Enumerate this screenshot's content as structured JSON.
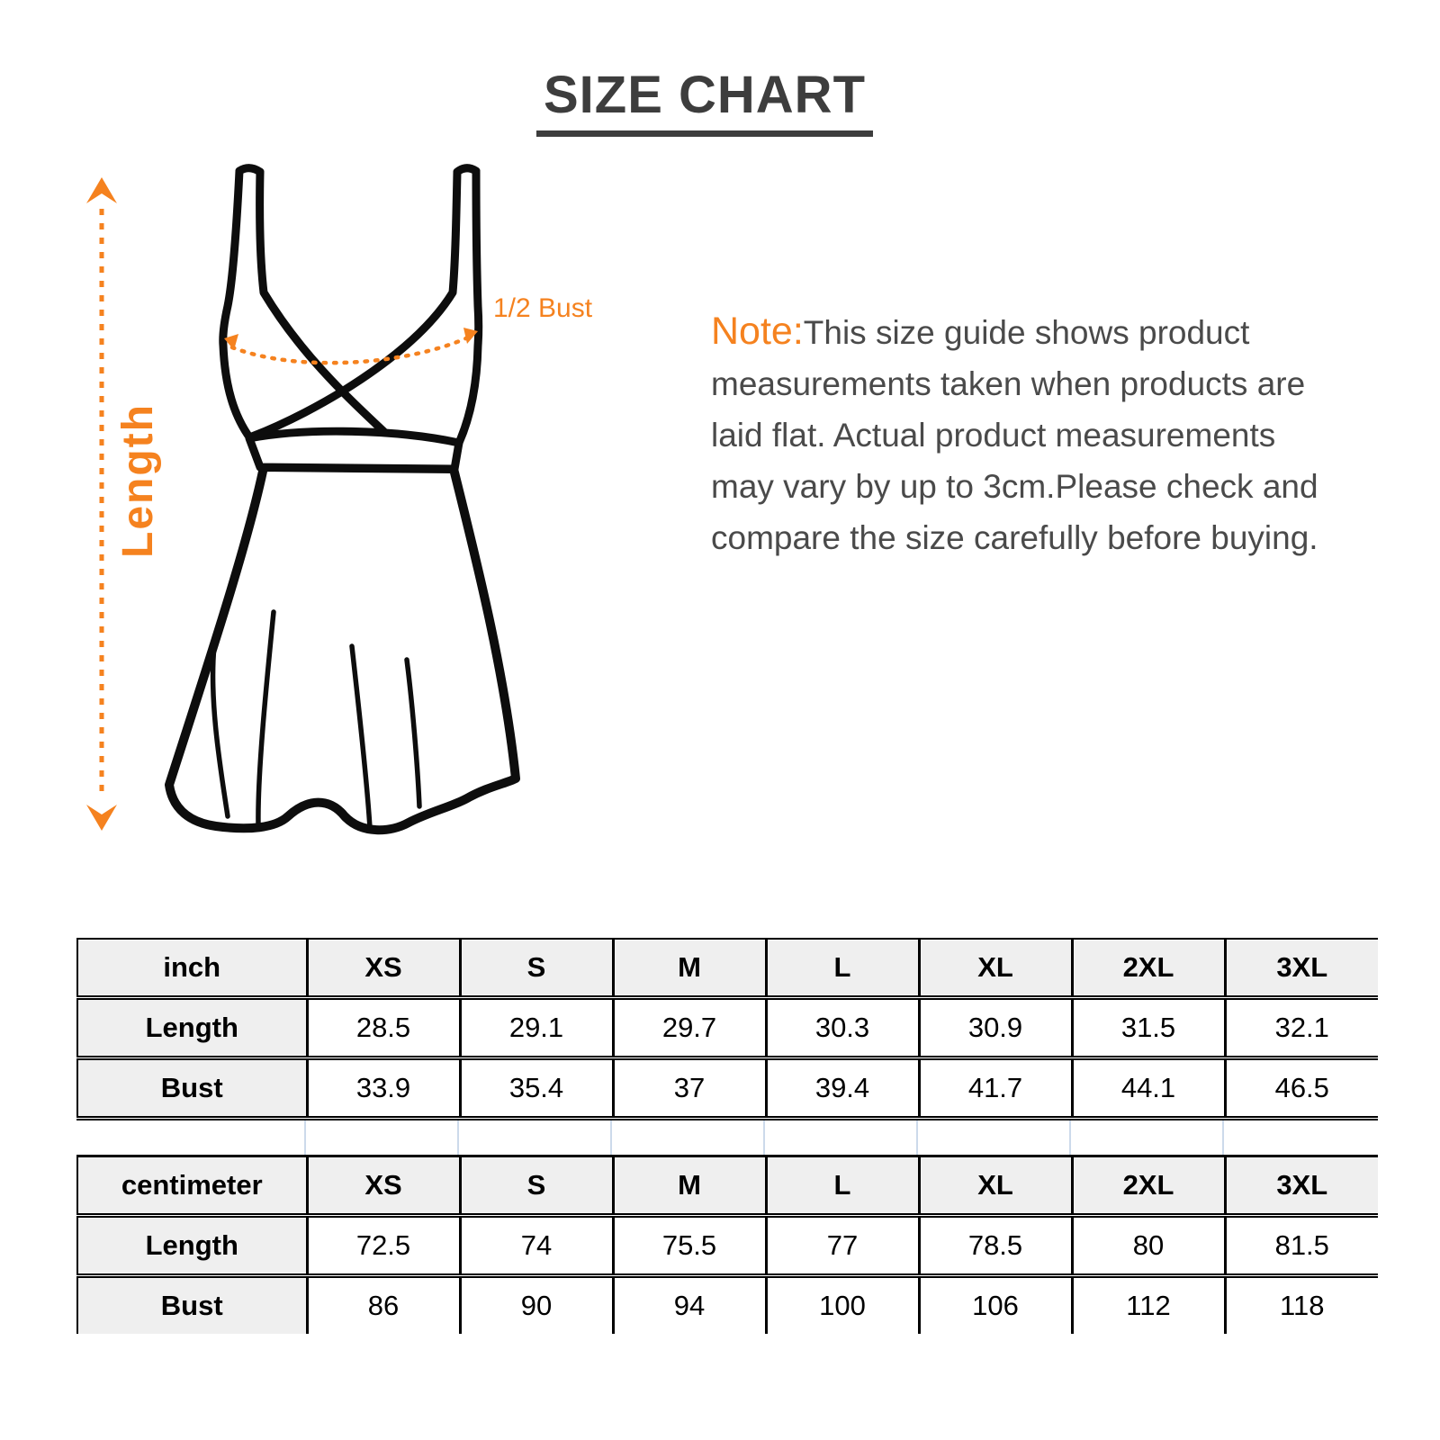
{
  "title": "SIZE CHART",
  "diagram": {
    "length_label": "Length",
    "bust_label": "1/2 Bust"
  },
  "note": {
    "prefix": "Note:",
    "lines": [
      "This size guide shows product",
      "measurements taken when products are",
      "laid flat. Actual product measurements",
      "may vary by up to 3cm.Please check and",
      "compare the size carefully before buying."
    ]
  },
  "colors": {
    "accent_orange": "#f5821f",
    "heading_gray": "#3d3d3d",
    "note_text": "#4a4a4a",
    "table_header_bg": "#efefef",
    "spacer_line": "#ccdaeb",
    "line_art": "#0d0d0d"
  },
  "chart_data": [
    {
      "type": "table",
      "unit": "inch",
      "columns": [
        "inch",
        "XS",
        "S",
        "M",
        "L",
        "XL",
        "2XL",
        "3XL"
      ],
      "rows": [
        {
          "label": "Length",
          "values": [
            "28.5",
            "29.1",
            "29.7",
            "30.3",
            "30.9",
            "31.5",
            "32.1"
          ]
        },
        {
          "label": "Bust",
          "values": [
            "33.9",
            "35.4",
            "37",
            "39.4",
            "41.7",
            "44.1",
            "46.5"
          ]
        }
      ]
    },
    {
      "type": "table",
      "unit": "centimeter",
      "columns": [
        "centimeter",
        "XS",
        "S",
        "M",
        "L",
        "XL",
        "2XL",
        "3XL"
      ],
      "rows": [
        {
          "label": "Length",
          "values": [
            "72.5",
            "74",
            "75.5",
            "77",
            "78.5",
            "80",
            "81.5"
          ]
        },
        {
          "label": "Bust",
          "values": [
            "86",
            "90",
            "94",
            "100",
            "106",
            "112",
            "118"
          ]
        }
      ]
    }
  ]
}
